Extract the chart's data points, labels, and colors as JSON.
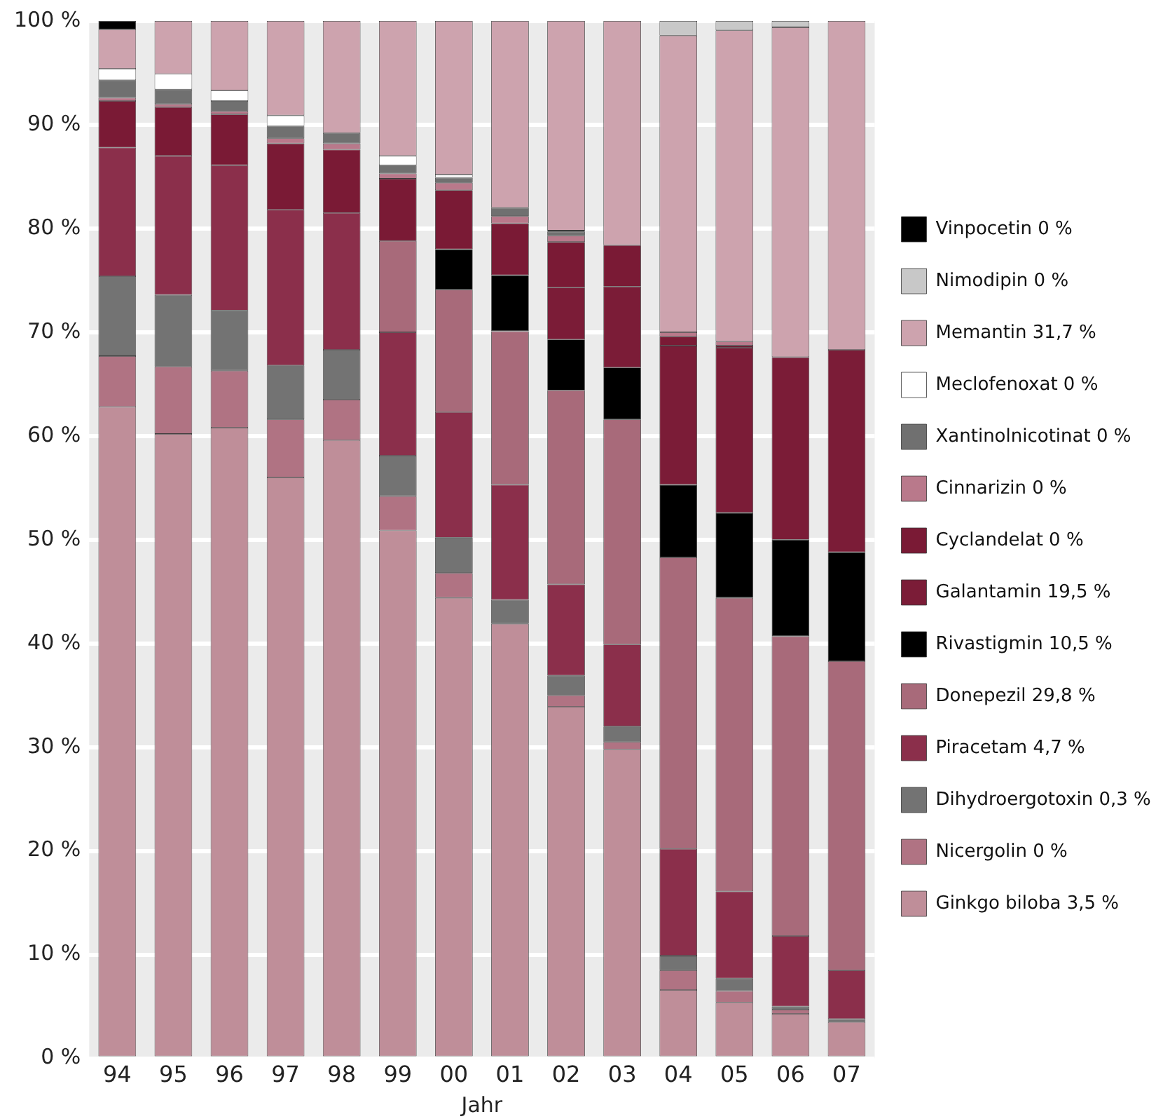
{
  "chart_data": {
    "type": "bar",
    "stacked": true,
    "xlabel": "Jahr",
    "grid": "y",
    "legend": "right",
    "categories": [
      "94",
      "95",
      "96",
      "97",
      "98",
      "99",
      "00",
      "01",
      "02",
      "03",
      "04",
      "05",
      "06",
      "07"
    ],
    "ylim": [
      0,
      100
    ],
    "yticks": [
      {
        "value": 0,
        "label": "0 %"
      },
      {
        "value": 10,
        "label": "10 %"
      },
      {
        "value": 20,
        "label": "20 %"
      },
      {
        "value": 30,
        "label": "30 %"
      },
      {
        "value": 40,
        "label": "40 %"
      },
      {
        "value": 50,
        "label": "50 %"
      },
      {
        "value": 60,
        "label": "60 %"
      },
      {
        "value": 70,
        "label": "70 %"
      },
      {
        "value": 80,
        "label": "80 %"
      },
      {
        "value": 90,
        "label": "90 %"
      },
      {
        "value": 100,
        "label": "100 %"
      }
    ],
    "series": [
      {
        "name": "Ginkgo biloba 3,5 %",
        "color": "#bf8e99",
        "values": [
          62.8,
          60.2,
          60.8,
          56.0,
          59.6,
          50.9,
          44.4,
          41.9,
          33.9,
          29.8,
          6.6,
          5.4,
          4.3,
          3.5
        ]
      },
      {
        "name": "Nicergolin 0 %",
        "color": "#b07383",
        "values": [
          4.9,
          6.5,
          5.5,
          5.6,
          3.9,
          3.3,
          2.4,
          0,
          1.1,
          0.7,
          1.9,
          1.1,
          0.4,
          0
        ]
      },
      {
        "name": "Dihydroergotoxin 0,3 %",
        "color": "#737373",
        "values": [
          7.7,
          6.9,
          5.8,
          5.2,
          4.8,
          3.9,
          3.4,
          2.3,
          1.9,
          1.5,
          1.4,
          1.2,
          0.3,
          0.3
        ]
      },
      {
        "name": "Piracetam 4,7 %",
        "color": "#8b2f4b",
        "values": [
          12.4,
          13.4,
          14.0,
          15.0,
          13.2,
          11.9,
          12.1,
          11.1,
          8.8,
          7.9,
          10.3,
          8.4,
          6.8,
          4.7
        ]
      },
      {
        "name": "Donepezil 29,8 %",
        "color": "#a86a7a",
        "values": [
          0,
          0,
          0,
          0,
          0,
          8.8,
          11.8,
          14.8,
          18.7,
          21.7,
          28.1,
          28.3,
          28.9,
          29.8
        ]
      },
      {
        "name": "Rivastigmin 10,5 %",
        "color": "#000000",
        "values": [
          0,
          0,
          0,
          0,
          0,
          0,
          3.9,
          5.4,
          4.9,
          5.0,
          7.0,
          8.2,
          9.3,
          10.5
        ]
      },
      {
        "name": "Galantamin 19,5 %",
        "color": "#7b1c37",
        "values": [
          0,
          0,
          0,
          0,
          0,
          0,
          0,
          0,
          5.0,
          7.8,
          13.4,
          15.9,
          17.6,
          19.5
        ]
      },
      {
        "name": "Cyclandelat 0 %",
        "color": "#7a1a35",
        "values": [
          4.5,
          4.7,
          4.9,
          6.4,
          6.1,
          6.0,
          5.7,
          5.0,
          4.4,
          4.0,
          0.9,
          0.2,
          0,
          0
        ]
      },
      {
        "name": "Cinnarizin 0 %",
        "color": "#b9798b",
        "values": [
          0.3,
          0.3,
          0.3,
          0.5,
          0.6,
          0.5,
          0.7,
          0.7,
          0.6,
          0,
          0.4,
          0.4,
          0,
          0
        ]
      },
      {
        "name": "Xantinolnicotinat 0 %",
        "color": "#707070",
        "values": [
          1.7,
          1.4,
          1.0,
          1.2,
          1.0,
          0.8,
          0.5,
          0.8,
          0.4,
          0,
          0,
          0,
          0,
          0
        ]
      },
      {
        "name": "Meclofenoxat 0 %",
        "color": "#ffffff",
        "values": [
          1.1,
          1.5,
          1.0,
          1.0,
          0,
          0.9,
          0.3,
          0,
          0.1,
          0,
          0,
          0,
          0,
          0
        ]
      },
      {
        "name": "Memantin 31,7 %",
        "color": "#cda3ae",
        "values": [
          3.8,
          5.1,
          6.7,
          9.1,
          10.8,
          13.0,
          14.8,
          18.0,
          20.2,
          21.6,
          28.6,
          30.0,
          31.8,
          31.7
        ]
      },
      {
        "name": "Nimodipin 0 %",
        "color": "#c8c8c8",
        "values": [
          0,
          0,
          0,
          0,
          0,
          0,
          0,
          0,
          0,
          0,
          1.4,
          0.9,
          0.6,
          0
        ]
      },
      {
        "name": "Vinpocetin 0 %",
        "color": "#000000",
        "values": [
          0.8,
          0,
          0,
          0,
          0,
          0,
          0,
          0,
          0,
          0,
          0,
          0,
          0,
          0
        ]
      }
    ]
  }
}
